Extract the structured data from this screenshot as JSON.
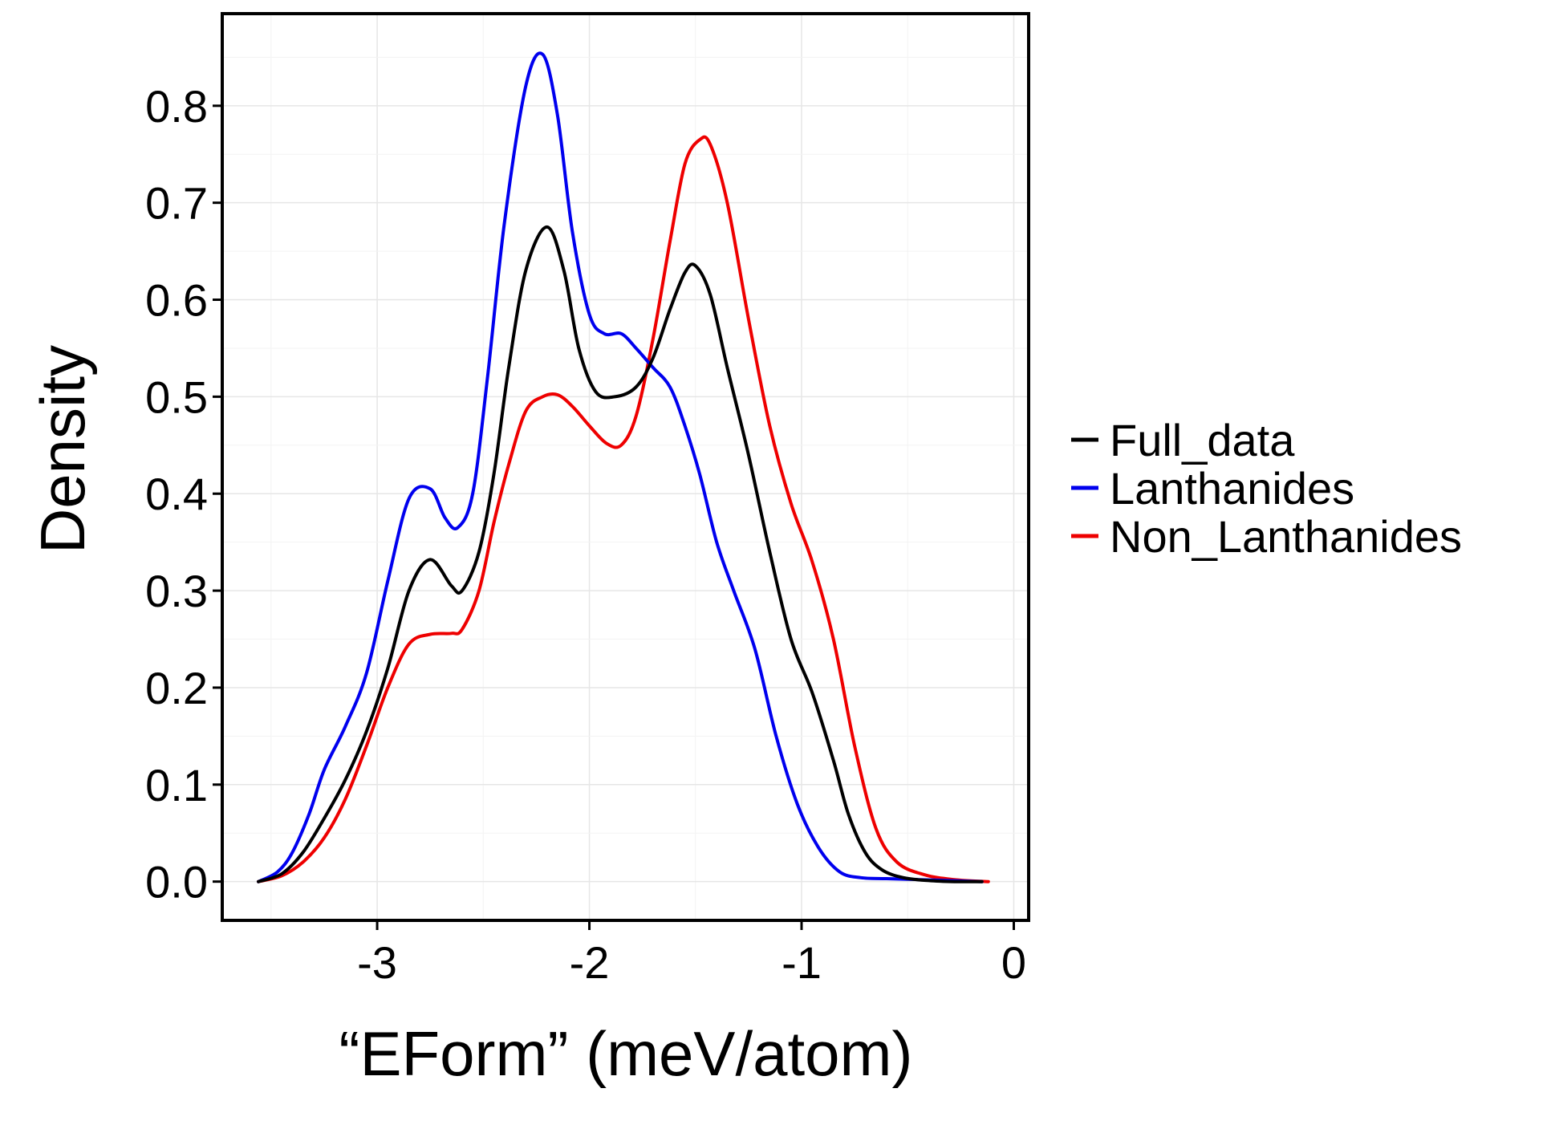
{
  "chart_data": {
    "type": "line",
    "title": "",
    "xlabel": "“EForm” (meV/atom)",
    "ylabel": "Density",
    "xlim": [
      -3.73,
      0.07
    ],
    "ylim": [
      -0.04,
      0.895
    ],
    "x_ticks": [
      -3,
      -2,
      -1,
      0
    ],
    "x_tick_labels": [
      "-3",
      "-2",
      "-1",
      "0"
    ],
    "y_ticks": [
      0.0,
      0.1,
      0.2,
      0.3,
      0.4,
      0.5,
      0.6,
      0.7,
      0.8
    ],
    "y_tick_labels": [
      "0.0",
      "0.1",
      "0.2",
      "0.3",
      "0.4",
      "0.5",
      "0.6",
      "0.7",
      "0.8"
    ],
    "grid": true,
    "legend_position": "right",
    "series": [
      {
        "name": "Full_data",
        "color": "#000000",
        "x": [
          -3.56,
          -3.45,
          -3.35,
          -3.25,
          -3.15,
          -3.05,
          -2.95,
          -2.85,
          -2.75,
          -2.65,
          -2.6,
          -2.52,
          -2.45,
          -2.38,
          -2.3,
          -2.2,
          -2.12,
          -2.05,
          -1.97,
          -1.88,
          -1.78,
          -1.7,
          -1.62,
          -1.55,
          -1.5,
          -1.43,
          -1.35,
          -1.25,
          -1.15,
          -1.05,
          -0.95,
          -0.85,
          -0.78,
          -0.7,
          -0.62,
          -0.52,
          -0.4,
          -0.28,
          -0.15
        ],
        "values": [
          0.0,
          0.008,
          0.03,
          0.065,
          0.105,
          0.155,
          0.22,
          0.3,
          0.332,
          0.305,
          0.3,
          0.34,
          0.42,
          0.53,
          0.63,
          0.675,
          0.63,
          0.55,
          0.505,
          0.5,
          0.51,
          0.54,
          0.59,
          0.628,
          0.635,
          0.605,
          0.53,
          0.44,
          0.34,
          0.25,
          0.195,
          0.125,
          0.07,
          0.03,
          0.012,
          0.004,
          0.001,
          0.0,
          0.0
        ]
      },
      {
        "name": "Lanthanides",
        "color": "#0000ee",
        "x": [
          -3.56,
          -3.47,
          -3.4,
          -3.32,
          -3.25,
          -3.15,
          -3.05,
          -2.95,
          -2.85,
          -2.75,
          -2.68,
          -2.62,
          -2.55,
          -2.48,
          -2.4,
          -2.3,
          -2.22,
          -2.15,
          -2.08,
          -2.0,
          -1.93,
          -1.85,
          -1.78,
          -1.7,
          -1.62,
          -1.55,
          -1.48,
          -1.4,
          -1.32,
          -1.22,
          -1.12,
          -1.02,
          -0.92,
          -0.82,
          -0.72,
          -0.6,
          -0.45,
          -0.3,
          -0.15
        ],
        "values": [
          0.0,
          0.01,
          0.03,
          0.07,
          0.115,
          0.16,
          0.215,
          0.31,
          0.395,
          0.405,
          0.375,
          0.365,
          0.4,
          0.52,
          0.68,
          0.82,
          0.853,
          0.79,
          0.67,
          0.585,
          0.565,
          0.565,
          0.55,
          0.53,
          0.51,
          0.47,
          0.42,
          0.35,
          0.3,
          0.24,
          0.15,
          0.08,
          0.035,
          0.01,
          0.004,
          0.003,
          0.002,
          0.001,
          0.0
        ]
      },
      {
        "name": "Non_Lanthanides",
        "color": "#ee0000",
        "x": [
          -3.56,
          -3.45,
          -3.35,
          -3.25,
          -3.15,
          -3.05,
          -2.95,
          -2.85,
          -2.75,
          -2.65,
          -2.6,
          -2.52,
          -2.45,
          -2.38,
          -2.3,
          -2.22,
          -2.15,
          -2.08,
          -2.0,
          -1.92,
          -1.85,
          -1.78,
          -1.7,
          -1.62,
          -1.55,
          -1.48,
          -1.43,
          -1.35,
          -1.25,
          -1.15,
          -1.05,
          -0.95,
          -0.85,
          -0.75,
          -0.65,
          -0.55,
          -0.42,
          -0.28,
          -0.12
        ],
        "values": [
          0.0,
          0.006,
          0.02,
          0.045,
          0.085,
          0.14,
          0.2,
          0.245,
          0.255,
          0.256,
          0.26,
          0.3,
          0.37,
          0.43,
          0.485,
          0.5,
          0.502,
          0.49,
          0.47,
          0.452,
          0.45,
          0.48,
          0.56,
          0.66,
          0.74,
          0.765,
          0.76,
          0.7,
          0.58,
          0.47,
          0.39,
          0.33,
          0.25,
          0.14,
          0.055,
          0.02,
          0.007,
          0.002,
          0.0
        ]
      }
    ]
  }
}
